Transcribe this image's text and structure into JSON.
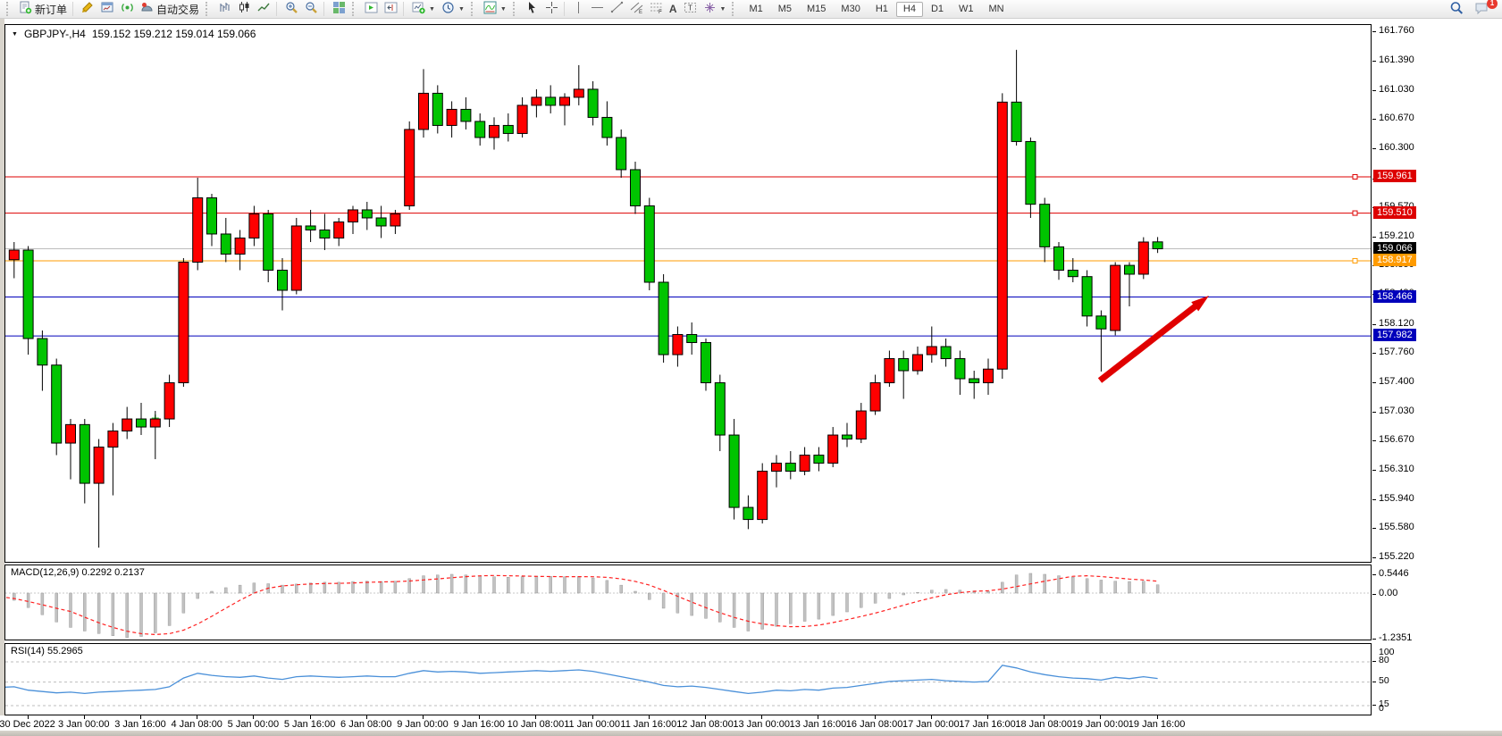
{
  "toolbar": {
    "new_order_label": "新订单",
    "auto_trading_label": "自动交易",
    "timeframes": [
      "M1",
      "M5",
      "M15",
      "M30",
      "H1",
      "H4",
      "D1",
      "W1",
      "MN"
    ],
    "active_timeframe": "H4",
    "notification_count": "1"
  },
  "chart": {
    "symbol_title": "GBPJPY-,H4",
    "quote": "159.152 159.212 159.014 159.066"
  },
  "chart_data": {
    "type": "candlestick",
    "symbol": "GBPJPY",
    "timeframe": "H4",
    "up_color": "#ff0000",
    "down_color": "#00c400",
    "wick_color": "#000000",
    "price_axis_ticks": [
      161.76,
      161.39,
      161.03,
      160.67,
      160.3,
      159.93,
      159.57,
      159.21,
      158.85,
      158.49,
      158.12,
      157.76,
      157.4,
      157.03,
      156.67,
      156.31,
      155.94,
      155.58,
      155.22
    ],
    "time_labels": [
      "30 Dec 2022",
      "3 Jan 00:00",
      "3 Jan 16:00",
      "4 Jan 08:00",
      "5 Jan 00:00",
      "5 Jan 16:00",
      "6 Jan 08:00",
      "9 Jan 00:00",
      "9 Jan 16:00",
      "10 Jan 08:00",
      "11 Jan 00:00",
      "11 Jan 16:00",
      "12 Jan 08:00",
      "13 Jan 00:00",
      "13 Jan 16:00",
      "16 Jan 08:00",
      "17 Jan 00:00",
      "17 Jan 16:00",
      "18 Jan 08:00",
      "19 Jan 00:00",
      "19 Jan 16:00"
    ],
    "levels": [
      {
        "price": 159.961,
        "line_color": "#dd0000",
        "label_bg": "#dd0000",
        "handle": true
      },
      {
        "price": 159.51,
        "line_color": "#dd0000",
        "label_bg": "#dd0000",
        "handle": true
      },
      {
        "price": 159.066,
        "line_color": "#bdbdbd",
        "label_bg": "#000000",
        "handle": false
      },
      {
        "price": 158.917,
        "line_color": "#ff9b00",
        "label_bg": "#ff9b00",
        "handle": true
      },
      {
        "price": 158.466,
        "line_color": "#0000bb",
        "label_bg": "#0000bb",
        "handle": false
      },
      {
        "price": 157.982,
        "line_color": "#0000bb",
        "label_bg": "#0000bb",
        "handle": false
      }
    ],
    "candles": [
      [
        159.65,
        159.7,
        158.85,
        158.93
      ],
      [
        158.93,
        159.15,
        158.7,
        159.05
      ],
      [
        159.05,
        159.1,
        157.75,
        157.95
      ],
      [
        157.95,
        158.05,
        157.3,
        157.62
      ],
      [
        157.62,
        157.7,
        156.5,
        156.65
      ],
      [
        156.65,
        156.95,
        156.2,
        156.88
      ],
      [
        156.88,
        156.95,
        155.9,
        156.15
      ],
      [
        156.15,
        156.7,
        155.35,
        156.6
      ],
      [
        156.6,
        156.9,
        156.0,
        156.8
      ],
      [
        156.8,
        157.1,
        156.7,
        156.95
      ],
      [
        156.95,
        157.15,
        156.75,
        156.85
      ],
      [
        156.85,
        157.05,
        156.45,
        156.95
      ],
      [
        156.95,
        157.5,
        156.85,
        157.4
      ],
      [
        157.4,
        158.95,
        157.35,
        158.9
      ],
      [
        158.9,
        159.95,
        158.8,
        159.7
      ],
      [
        159.7,
        159.75,
        159.1,
        159.25
      ],
      [
        159.25,
        159.45,
        158.9,
        159.0
      ],
      [
        159.0,
        159.3,
        158.8,
        159.2
      ],
      [
        159.2,
        159.6,
        159.1,
        159.5
      ],
      [
        159.5,
        159.55,
        158.65,
        158.8
      ],
      [
        158.8,
        158.95,
        158.3,
        158.55
      ],
      [
        158.55,
        159.45,
        158.5,
        159.35
      ],
      [
        159.35,
        159.55,
        159.15,
        159.3
      ],
      [
        159.3,
        159.5,
        159.05,
        159.2
      ],
      [
        159.2,
        159.45,
        159.1,
        159.4
      ],
      [
        159.4,
        159.6,
        159.25,
        159.55
      ],
      [
        159.55,
        159.65,
        159.3,
        159.45
      ],
      [
        159.45,
        159.6,
        159.2,
        159.35
      ],
      [
        159.35,
        159.55,
        159.25,
        159.5
      ],
      [
        159.6,
        160.65,
        159.55,
        160.55
      ],
      [
        160.55,
        161.3,
        160.45,
        161.0
      ],
      [
        161.0,
        161.1,
        160.5,
        160.6
      ],
      [
        160.6,
        160.9,
        160.45,
        160.8
      ],
      [
        160.8,
        160.95,
        160.55,
        160.65
      ],
      [
        160.65,
        160.75,
        160.35,
        160.45
      ],
      [
        160.45,
        160.7,
        160.3,
        160.6
      ],
      [
        160.6,
        160.75,
        160.4,
        160.5
      ],
      [
        160.5,
        160.95,
        160.45,
        160.85
      ],
      [
        160.85,
        161.05,
        160.7,
        160.95
      ],
      [
        160.95,
        161.1,
        160.75,
        160.85
      ],
      [
        160.85,
        161.0,
        160.6,
        160.95
      ],
      [
        160.95,
        161.35,
        160.85,
        161.05
      ],
      [
        161.05,
        161.15,
        160.6,
        160.7
      ],
      [
        160.7,
        160.9,
        160.35,
        160.45
      ],
      [
        160.45,
        160.55,
        159.95,
        160.05
      ],
      [
        160.05,
        160.15,
        159.5,
        159.6
      ],
      [
        159.6,
        159.7,
        158.55,
        158.65
      ],
      [
        158.65,
        158.75,
        157.65,
        157.75
      ],
      [
        157.75,
        158.1,
        157.6,
        158.0
      ],
      [
        158.0,
        158.15,
        157.75,
        157.9
      ],
      [
        157.9,
        157.95,
        157.3,
        157.4
      ],
      [
        157.4,
        157.5,
        156.55,
        156.75
      ],
      [
        156.75,
        156.95,
        155.7,
        155.85
      ],
      [
        155.85,
        156.0,
        155.58,
        155.7
      ],
      [
        155.7,
        156.4,
        155.65,
        156.3
      ],
      [
        156.3,
        156.5,
        156.1,
        156.4
      ],
      [
        156.4,
        156.55,
        156.2,
        156.3
      ],
      [
        156.3,
        156.6,
        156.25,
        156.5
      ],
      [
        156.5,
        156.6,
        156.3,
        156.4
      ],
      [
        156.4,
        156.85,
        156.35,
        156.75
      ],
      [
        156.75,
        156.9,
        156.6,
        156.7
      ],
      [
        156.7,
        157.15,
        156.65,
        157.05
      ],
      [
        157.05,
        157.5,
        157.0,
        157.4
      ],
      [
        157.4,
        157.8,
        157.35,
        157.7
      ],
      [
        157.7,
        157.8,
        157.2,
        157.55
      ],
      [
        157.55,
        157.85,
        157.5,
        157.75
      ],
      [
        157.75,
        158.1,
        157.65,
        157.85
      ],
      [
        157.85,
        157.95,
        157.6,
        157.7
      ],
      [
        157.7,
        157.8,
        157.25,
        157.45
      ],
      [
        157.45,
        157.55,
        157.2,
        157.4
      ],
      [
        157.4,
        157.7,
        157.25,
        157.57
      ],
      [
        157.57,
        161.0,
        157.45,
        160.89
      ],
      [
        160.89,
        161.54,
        160.35,
        160.4
      ],
      [
        160.4,
        160.45,
        159.45,
        159.62
      ],
      [
        159.62,
        159.7,
        158.9,
        159.09
      ],
      [
        159.09,
        159.15,
        158.68,
        158.8
      ],
      [
        158.8,
        158.95,
        158.65,
        158.72
      ],
      [
        158.72,
        158.8,
        158.1,
        158.23
      ],
      [
        158.23,
        158.3,
        157.54,
        158.07
      ],
      [
        158.05,
        158.9,
        157.99,
        158.86
      ],
      [
        158.86,
        158.9,
        158.35,
        158.75
      ],
      [
        158.75,
        159.21,
        158.69,
        159.15
      ],
      [
        159.152,
        159.212,
        159.014,
        159.066
      ]
    ],
    "trade_marker": {
      "index": 11,
      "price": 156.96,
      "color": "#32cd32"
    },
    "arrow": {
      "tail": [
        1225,
        398
      ],
      "head": [
        1347,
        303
      ],
      "color": "#e00000"
    },
    "macd": {
      "label": "MACD(12,26,9) 0.2292 0.2137",
      "axis_labels": [
        "0.5446",
        "0.00",
        "-1.2351"
      ],
      "axis_values": [
        0.5446,
        0,
        -1.2351
      ],
      "main_value": 0.2292,
      "signal_value": 0.2137,
      "histogram": [
        -0.1,
        -0.2,
        -0.4,
        -0.6,
        -0.8,
        -0.95,
        -1.05,
        -1.12,
        -1.18,
        -1.23,
        -1.2,
        -1.1,
        -0.9,
        -0.55,
        -0.15,
        0.05,
        0.15,
        0.22,
        0.28,
        0.26,
        0.22,
        0.25,
        0.28,
        0.3,
        0.3,
        0.32,
        0.33,
        0.32,
        0.33,
        0.4,
        0.48,
        0.5,
        0.52,
        0.5,
        0.47,
        0.45,
        0.44,
        0.45,
        0.47,
        0.46,
        0.45,
        0.46,
        0.42,
        0.35,
        0.22,
        0.05,
        -0.18,
        -0.42,
        -0.55,
        -0.62,
        -0.7,
        -0.8,
        -0.95,
        -1.05,
        -1.0,
        -0.92,
        -0.85,
        -0.78,
        -0.72,
        -0.62,
        -0.52,
        -0.4,
        -0.28,
        -0.15,
        -0.05,
        0.02,
        0.08,
        0.1,
        0.08,
        0.06,
        0.05,
        0.3,
        0.5,
        0.545,
        0.52,
        0.48,
        0.44,
        0.4,
        0.36,
        0.33,
        0.32,
        0.33,
        0.2292
      ]
    },
    "rsi": {
      "label": "RSI(14) 55.2965",
      "value": 55.2965,
      "axis_labels": [
        "100",
        "80",
        "50",
        "15",
        "0"
      ],
      "levels": [
        80,
        50,
        15
      ],
      "values": [
        42,
        43,
        38,
        36,
        34,
        35,
        33,
        35,
        36,
        37,
        38,
        39,
        43,
        56,
        63,
        60,
        58,
        57,
        59,
        56,
        54,
        58,
        59,
        58,
        57,
        58,
        59,
        58,
        58,
        63,
        67,
        65,
        66,
        65,
        63,
        64,
        65,
        66,
        67,
        66,
        67,
        68,
        66,
        62,
        58,
        54,
        50,
        45,
        43,
        44,
        42,
        39,
        36,
        33,
        35,
        38,
        37,
        39,
        38,
        41,
        42,
        45,
        48,
        51,
        52,
        53,
        54,
        52,
        51,
        50,
        51,
        75,
        71,
        65,
        61,
        58,
        56,
        55,
        53,
        57,
        55,
        58,
        55.3
      ]
    }
  }
}
